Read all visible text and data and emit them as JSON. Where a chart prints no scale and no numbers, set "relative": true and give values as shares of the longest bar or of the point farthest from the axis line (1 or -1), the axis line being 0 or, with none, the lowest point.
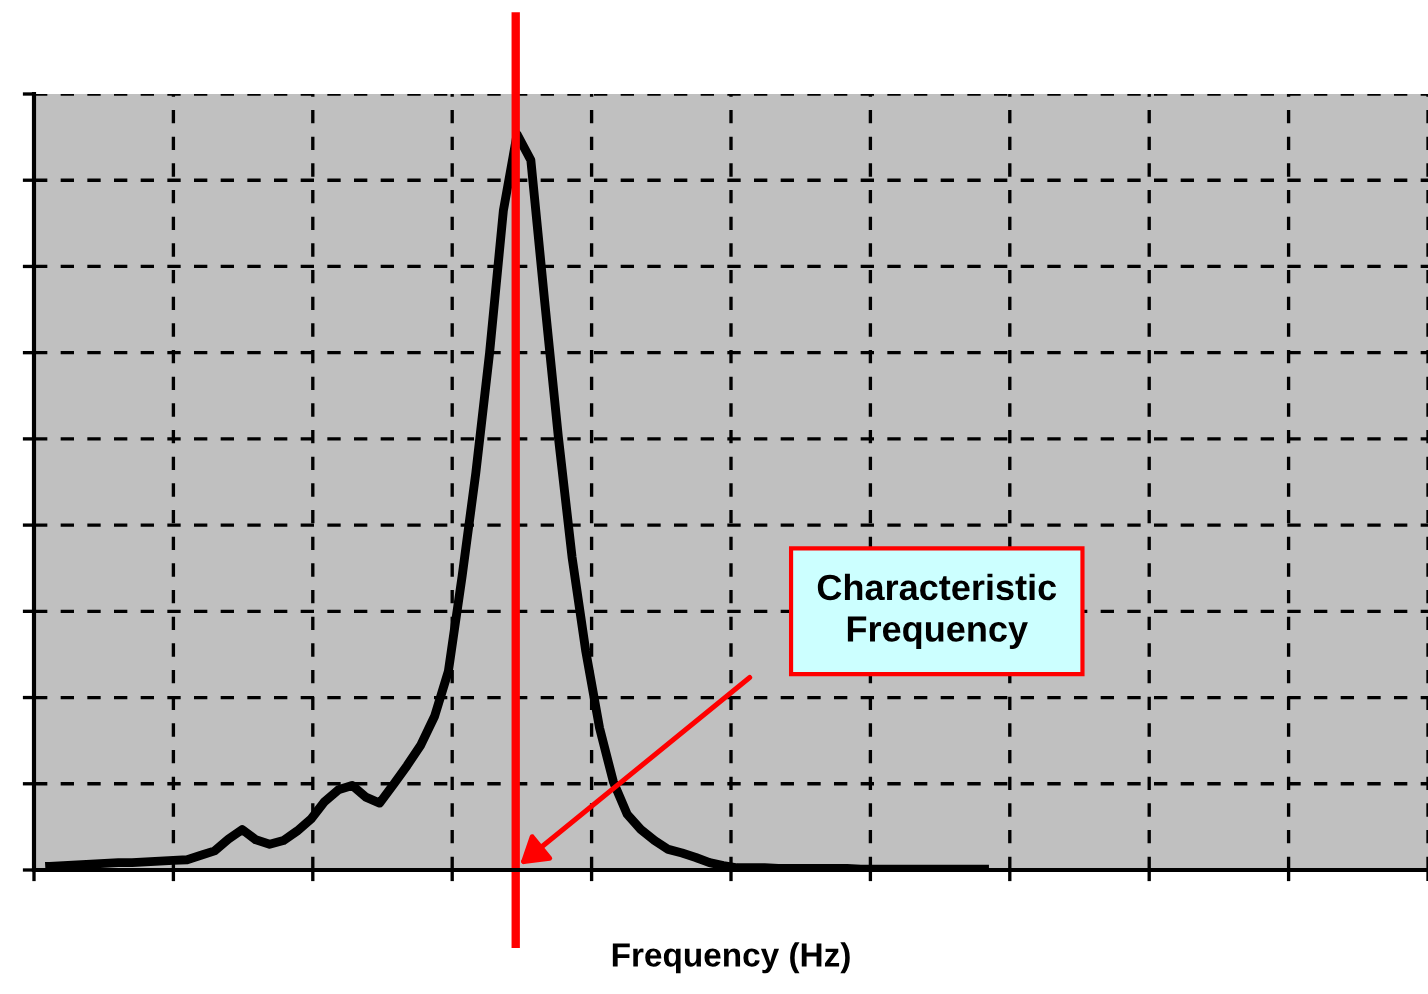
{
  "chart_data": {
    "type": "line",
    "relative": true,
    "xlabel": "Frequency (Hz)",
    "categories": [
      null,
      null,
      null,
      null,
      null,
      null,
      null,
      null,
      null,
      null,
      null,
      null,
      null,
      null,
      null,
      null,
      null,
      null,
      null,
      null,
      null,
      null,
      null,
      null,
      null,
      null,
      null,
      null,
      null,
      null,
      null,
      null,
      null,
      null,
      null,
      null,
      null,
      null,
      null,
      null,
      null,
      null,
      null,
      null,
      null,
      null,
      null,
      null,
      null,
      null,
      null,
      null,
      null,
      null,
      null,
      null,
      null,
      null,
      null,
      null,
      null,
      null,
      null,
      null,
      null,
      null,
      null,
      null,
      null
    ],
    "series": [
      {
        "color": "#000000",
        "values": [
          0.005,
          0.006,
          0.007,
          0.008,
          0.009,
          0.01,
          0.01,
          0.011,
          0.012,
          0.013,
          0.014,
          0.02,
          0.026,
          0.042,
          0.055,
          0.041,
          0.035,
          0.04,
          0.053,
          0.069,
          0.093,
          0.109,
          0.115,
          0.099,
          0.091,
          0.116,
          0.142,
          0.17,
          0.209,
          0.27,
          0.399,
          0.54,
          0.703,
          0.896,
          1.0,
          0.965,
          0.774,
          0.589,
          0.425,
          0.297,
          0.193,
          0.12,
          0.076,
          0.055,
          0.04,
          0.028,
          0.023,
          0.017,
          0.01,
          0.006,
          0.003,
          0.003,
          0.003,
          0.002,
          0.002,
          0.002,
          0.002,
          0.002,
          0.002,
          0.001,
          0.001,
          0.001,
          0.001,
          0.001,
          0.001,
          0.001,
          0.001,
          0.001,
          0.001
        ]
      }
    ],
    "annotations": [
      "Characteristic Frequency"
    ],
    "grid": true,
    "line_style": "solid",
    "marker": "none",
    "tick_labels": false
  }
}
